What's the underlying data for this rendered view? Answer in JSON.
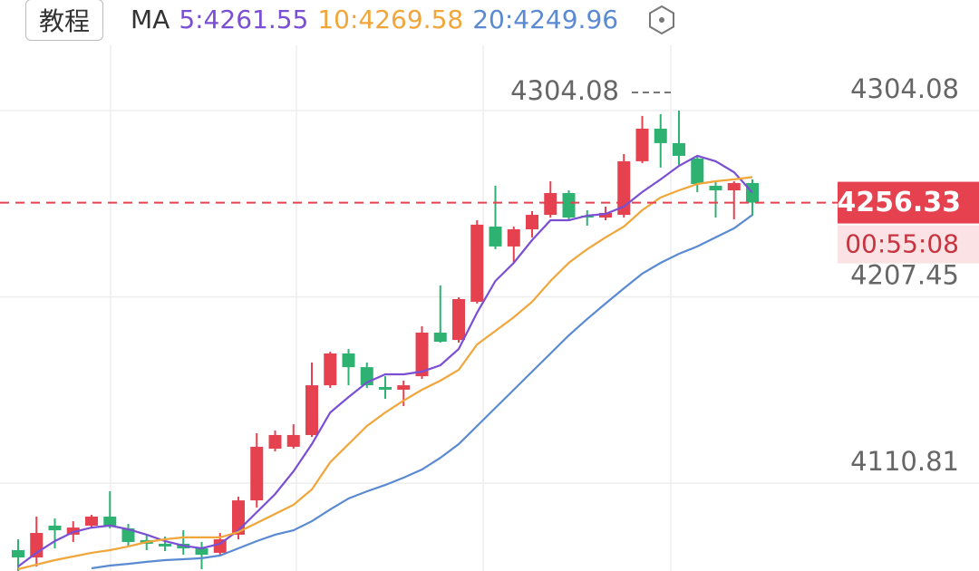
{
  "toolbar": {
    "button": "教程"
  },
  "chart_data": {
    "type": "candlestick",
    "legend_title": "MA",
    "ylim": [
      4065.27,
      4361.43
    ],
    "yticks": [
      4304.08,
      4207.45,
      4110.81
    ],
    "grid": true,
    "up_color": "#e5414f",
    "down_color": "#2db272",
    "max_marker": 4304.08,
    "last_price": 4256.33,
    "countdown": "00:55:08",
    "open": [
      4076.1,
      4072.3,
      4088.8,
      4084.1,
      4088.8,
      4093.5,
      4087.4,
      4081.3,
      4079.4,
      4079.4,
      4077.0,
      4074.7,
      4084.1,
      4101.9,
      4128.7,
      4129.7,
      4135.8,
      4161.6,
      4178.1,
      4171.0,
      4160.7,
      4159.3,
      4166.3,
      4188.9,
      4185.1,
      4204.9,
      4243.9,
      4233.6,
      4242.5,
      4250.0,
      4261.3,
      4249.6,
      4248.6,
      4250.0,
      4277.8,
      4294.7,
      4287.2,
      4279.2,
      4265.1,
      4262.7,
      4266.5
    ],
    "high": [
      4081.7,
      4093.5,
      4092.5,
      4091.1,
      4094.4,
      4106.6,
      4089.7,
      4084.1,
      4083.1,
      4086.4,
      4080.3,
      4085.0,
      4103.8,
      4136.7,
      4138.1,
      4141.4,
      4173.4,
      4179.0,
      4180.4,
      4173.4,
      4166.3,
      4164.0,
      4192.2,
      4213.4,
      4207.2,
      4247.2,
      4265.1,
      4243.9,
      4251.9,
      4267.4,
      4262.7,
      4252.4,
      4254.3,
      4281.5,
      4301.3,
      4302.2,
      4304.08,
      4280.6,
      4267.4,
      4267.4,
      4268.4
    ],
    "low": [
      4065.3,
      4067.6,
      4077.0,
      4080.3,
      4087.8,
      4087.4,
      4078.0,
      4076.1,
      4075.6,
      4073.7,
      4066.2,
      4073.7,
      4081.7,
      4098.2,
      4127.3,
      4128.7,
      4134.8,
      4160.2,
      4161.6,
      4160.2,
      4154.6,
      4150.8,
      4164.9,
      4183.7,
      4183.7,
      4204.0,
      4232.2,
      4225.1,
      4238.3,
      4248.6,
      4247.2,
      4244.4,
      4247.2,
      4248.6,
      4276.8,
      4274.5,
      4275.9,
      4261.8,
      4248.6,
      4247.7,
      4249.6
    ],
    "close": [
      4072.3,
      4085.0,
      4086.4,
      4087.8,
      4093.5,
      4088.8,
      4080.3,
      4079.4,
      4078.0,
      4077.0,
      4073.7,
      4081.7,
      4101.9,
      4129.7,
      4135.8,
      4135.8,
      4161.6,
      4178.1,
      4171.0,
      4161.6,
      4159.3,
      4161.6,
      4188.9,
      4184.2,
      4206.3,
      4244.9,
      4233.6,
      4242.5,
      4250.0,
      4261.3,
      4248.6,
      4248.6,
      4251.0,
      4277.8,
      4294.7,
      4287.2,
      4280.6,
      4266.0,
      4262.7,
      4266.5,
      4256.33
    ],
    "series": [
      {
        "name": "5:4261.55",
        "color": "#7a4fd4",
        "values": [
          4067.6,
          4074.7,
          4080.8,
          4085.5,
          4087.8,
          4088.8,
          4086.9,
          4084.1,
          4080.8,
          4078.4,
          4077.0,
          4079.4,
          4086.4,
          4095.8,
          4105.2,
          4117.0,
          4131.1,
          4147.5,
          4155.5,
          4163.1,
          4167.3,
          4167.3,
          4168.7,
          4172.0,
          4180.4,
          4199.3,
          4215.7,
          4225.1,
          4236.9,
          4247.2,
          4247.2,
          4249.6,
          4250.5,
          4254.3,
          4261.8,
          4268.4,
          4275.4,
          4280.6,
          4277.8,
          4272.1,
          4261.55
        ]
      },
      {
        "name": "10:4269.58",
        "color": "#f0a63a",
        "values": [
          4066.2,
          4068.6,
          4070.9,
          4072.8,
          4074.7,
          4076.1,
          4078.0,
          4080.3,
          4081.7,
          4082.7,
          4082.7,
          4082.7,
          4085.5,
          4090.2,
          4094.9,
          4099.6,
          4107.6,
          4121.7,
          4131.1,
          4140.5,
          4147.5,
          4153.7,
          4159.3,
          4164.0,
          4169.6,
          4182.8,
          4189.8,
          4196.9,
          4204.9,
          4215.7,
          4225.1,
          4232.2,
          4238.3,
          4243.9,
          4252.4,
          4259.0,
          4262.7,
          4266.0,
          4267.4,
          4268.4,
          4269.58
        ]
      },
      {
        "name": "20:4249.96",
        "color": "#5a8ad2",
        "values": [
          null,
          null,
          null,
          null,
          4066.7,
          4068.1,
          4069.0,
          4070.0,
          4070.9,
          4071.4,
          4071.9,
          4073.3,
          4077.0,
          4080.8,
          4084.1,
          4086.4,
          4091.1,
          4097.2,
          4102.9,
          4106.6,
          4109.9,
          4113.7,
          4117.9,
          4124.0,
          4131.1,
          4140.5,
          4149.9,
          4159.3,
          4168.7,
          4178.1,
          4187.5,
          4196.0,
          4204.0,
          4211.9,
          4219.5,
          4225.1,
          4229.8,
          4233.6,
          4238.3,
          4243.0,
          4249.96
        ]
      }
    ]
  }
}
